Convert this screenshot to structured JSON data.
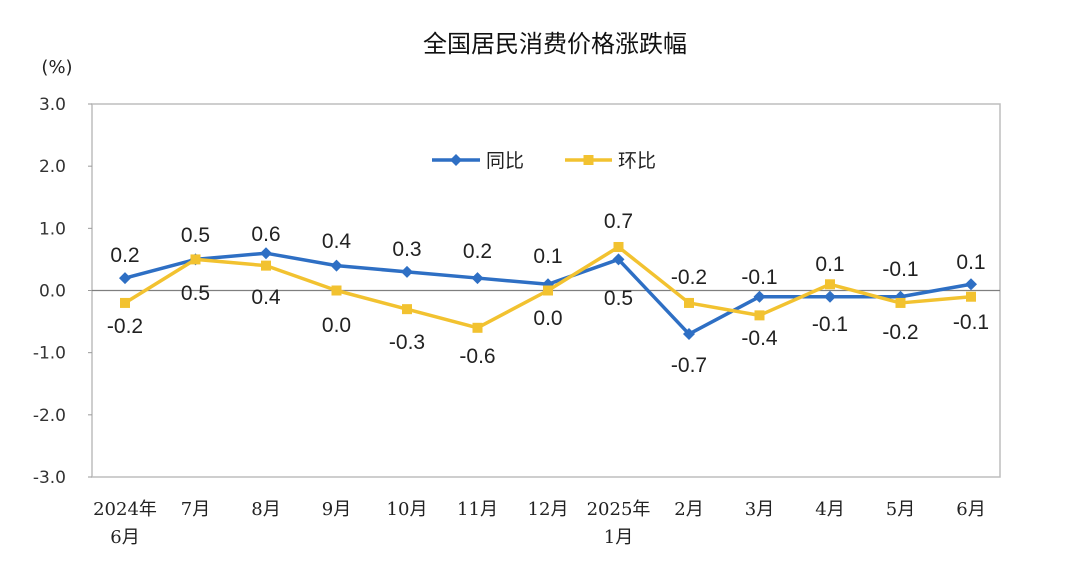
{
  "chart_data": {
    "type": "line",
    "title": "全国居民消费价格涨跌幅",
    "ylabel": "(%)",
    "xlabel": "",
    "categories": [
      "2024年|6月",
      "7月",
      "8月",
      "9月",
      "10月",
      "11月",
      "12月",
      "2025年|1月",
      "2月",
      "3月",
      "4月",
      "5月",
      "6月"
    ],
    "ylim": [
      -3.0,
      3.0
    ],
    "yticks": [
      3.0,
      2.0,
      1.0,
      0.0,
      -1.0,
      -2.0,
      -3.0
    ],
    "ytick_labels": [
      "3.0",
      "2.0",
      "1.0",
      "0.0",
      "-1.0",
      "-2.0",
      "-3.0"
    ],
    "legend_position": "top-center",
    "grid": false,
    "series": [
      {
        "name": "同比",
        "color": "#2E6FC4",
        "marker": "diamond",
        "values": [
          0.2,
          0.5,
          0.6,
          0.4,
          0.3,
          0.2,
          0.1,
          0.5,
          -0.7,
          -0.1,
          -0.1,
          -0.1,
          0.1
        ],
        "labels": [
          "0.2",
          "0.5",
          "0.6",
          "0.4",
          "0.3",
          "0.2",
          "0.1",
          "0.5",
          "-0.7",
          "-0.1",
          "-0.1",
          "-0.1",
          "0.1"
        ]
      },
      {
        "name": "环比",
        "color": "#F2C230",
        "marker": "square",
        "values": [
          -0.2,
          0.5,
          0.4,
          0.0,
          -0.3,
          -0.6,
          0.0,
          0.7,
          -0.2,
          -0.4,
          0.1,
          -0.2,
          -0.1
        ],
        "labels": [
          "-0.2",
          "0.5",
          "0.4",
          "0.0",
          "-0.3",
          "-0.6",
          "0.0",
          "0.7",
          "-0.2",
          "-0.4",
          "0.1",
          "-0.2",
          "-0.1"
        ]
      }
    ]
  }
}
